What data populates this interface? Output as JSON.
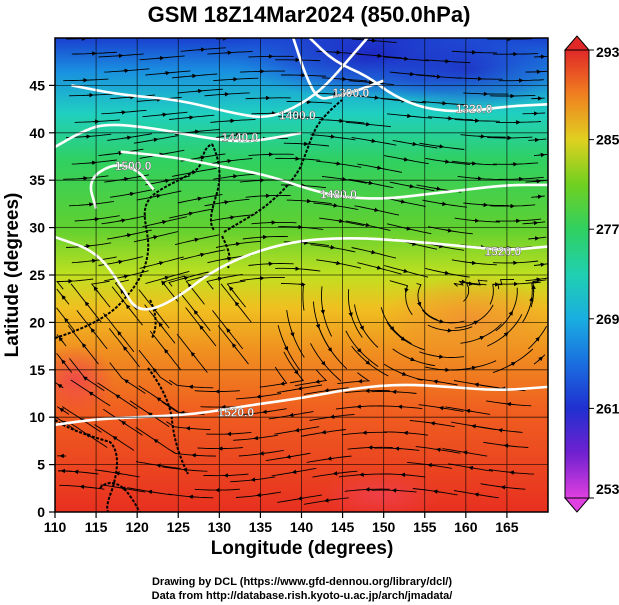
{
  "title": "GSM 18Z14Mar2024 (850.0hPa)",
  "xlabel": "Longitude (degrees)",
  "ylabel": "Latitude  (degrees)",
  "credits": [
    "Drawing by DCL (https://www.gfd-dennou.org/library/dcl/)",
    "Data from http://database.rish.kyoto-u.ac.jp/arch/jmadata/"
  ],
  "chart_data": {
    "type": "heatmap",
    "description_fields": {
      "field": "temperature",
      "overlay": [
        "streamlines",
        "geopotential height contours"
      ]
    },
    "x_range": [
      110,
      170
    ],
    "y_range": [
      0,
      50
    ],
    "x_ticks": [
      110,
      115,
      120,
      125,
      130,
      135,
      140,
      145,
      150,
      155,
      160,
      165
    ],
    "y_ticks": [
      0,
      5,
      10,
      15,
      20,
      25,
      30,
      35,
      40,
      45
    ],
    "grid": true,
    "colorbar": {
      "min": 253,
      "max": 293,
      "ticks": [
        253,
        261,
        269,
        277,
        285,
        293
      ],
      "colors": [
        "#e040e0",
        "#6a1fd0",
        "#2030d0",
        "#1a8ee0",
        "#20d0c0",
        "#30d070",
        "#50d030",
        "#c8e020",
        "#f0b020",
        "#f06020",
        "#e02020"
      ]
    },
    "height_contours": [
      {
        "label": "1300.0",
        "label_x": 146,
        "label_y": 44.2,
        "points": [
          [
            139,
            50
          ],
          [
            140.5,
            46
          ],
          [
            142,
            43.5
          ],
          [
            144,
            43.8
          ],
          [
            147,
            44.5
          ],
          [
            150,
            45.5
          ]
        ]
      },
      {
        "label": "1320.0",
        "label_x": 161,
        "label_y": 42.5,
        "points": [
          [
            141,
            50
          ],
          [
            144,
            47.5
          ],
          [
            148,
            46
          ],
          [
            151,
            44
          ],
          [
            155,
            42.5
          ],
          [
            160,
            42.2
          ],
          [
            165,
            42.8
          ],
          [
            170,
            43
          ]
        ]
      },
      {
        "label": "1400.0",
        "label_x": 139.5,
        "label_y": 41.8,
        "points": [
          [
            112,
            45
          ],
          [
            118,
            44
          ],
          [
            125,
            43.5
          ],
          [
            132,
            42
          ],
          [
            136,
            41.5
          ],
          [
            140,
            43
          ],
          [
            143,
            45
          ],
          [
            146,
            48
          ],
          [
            148,
            50
          ]
        ]
      },
      {
        "label": "1440.0",
        "label_x": 132.5,
        "label_y": 39.5,
        "points": [
          [
            110,
            38.5
          ],
          [
            113,
            40
          ],
          [
            116,
            41
          ],
          [
            122,
            40.5
          ],
          [
            128,
            39.5
          ],
          [
            133,
            39
          ],
          [
            137,
            39.5
          ],
          [
            140,
            40
          ]
        ]
      },
      {
        "label": "1480.0",
        "label_x": 144.5,
        "label_y": 33.5,
        "points": [
          [
            118,
            38
          ],
          [
            124,
            37.5
          ],
          [
            130,
            36.5
          ],
          [
            136,
            35.5
          ],
          [
            141,
            34
          ],
          [
            145,
            33.2
          ],
          [
            150,
            33
          ],
          [
            155,
            33.5
          ],
          [
            160,
            34
          ],
          [
            165,
            34.5
          ],
          [
            170,
            34.5
          ]
        ]
      },
      {
        "label": "1500.0",
        "label_x": 119.5,
        "label_y": 36.5,
        "points": [
          [
            115,
            32
          ],
          [
            114,
            35
          ],
          [
            117,
            36.8
          ],
          [
            120,
            36.2
          ],
          [
            122,
            34
          ]
        ]
      },
      {
        "label": "1520.0",
        "label_x": 164.5,
        "label_y": 27.5,
        "points": [
          [
            110,
            29
          ],
          [
            115,
            27.5
          ],
          [
            118,
            24
          ],
          [
            120,
            21
          ],
          [
            124,
            22
          ],
          [
            130,
            26
          ],
          [
            138,
            28.5
          ],
          [
            146,
            29
          ],
          [
            154,
            28.5
          ],
          [
            160,
            28
          ],
          [
            165,
            27.6
          ],
          [
            170,
            28
          ]
        ]
      },
      {
        "label": "1520.0",
        "label_x": 132,
        "label_y": 10.5,
        "points": [
          [
            110,
            9.2
          ],
          [
            115,
            9.8
          ],
          [
            120,
            10
          ],
          [
            127,
            10.3
          ],
          [
            134,
            11.3
          ],
          [
            140,
            12
          ],
          [
            146,
            13
          ],
          [
            152,
            13.5
          ],
          [
            158,
            13.2
          ],
          [
            164,
            12.8
          ],
          [
            170,
            13.2
          ]
        ]
      }
    ]
  }
}
